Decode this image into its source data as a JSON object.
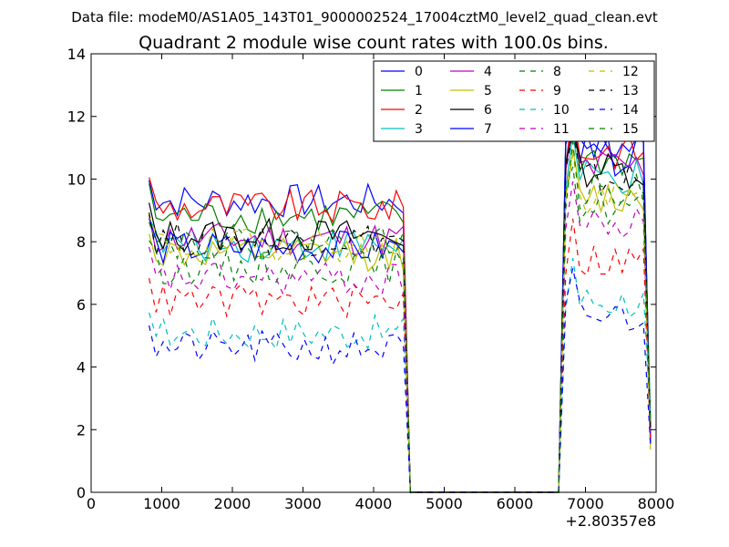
{
  "suptitle": "Data file: modeM0/AS1A05_143T01_9000002524_17004cztM0_level2_quad_clean.evt",
  "chart_data": {
    "type": "line",
    "title": "Quadrant 2 module wise count rates with 100.0s bins.",
    "xlabel": "",
    "ylabel": "",
    "x_offset_label": "+2.80357e8",
    "xlim": [
      0,
      8000
    ],
    "ylim": [
      0,
      14
    ],
    "xticks": [
      0,
      1000,
      2000,
      3000,
      4000,
      5000,
      6000,
      7000,
      8000
    ],
    "yticks": [
      0,
      2,
      4,
      6,
      8,
      10,
      12,
      14
    ],
    "grid": false,
    "legend_position": "top-right",
    "x_segments": [
      {
        "start": 820,
        "end": 4420,
        "step": 100
      },
      {
        "start": 4520,
        "end": 6620,
        "step": 100
      },
      {
        "start": 6720,
        "end": 7920,
        "step": 100
      }
    ],
    "series": [
      {
        "name": "0",
        "color": "#0000ff",
        "dash": "solid",
        "level1": 9.3,
        "level2": 11.0
      },
      {
        "name": "1",
        "color": "#008000",
        "dash": "solid",
        "level1": 8.8,
        "level2": 10.6
      },
      {
        "name": "2",
        "color": "#ff0000",
        "dash": "solid",
        "level1": 9.1,
        "level2": 10.9
      },
      {
        "name": "3",
        "color": "#00bfbf",
        "dash": "solid",
        "level1": 7.9,
        "level2": 10.0
      },
      {
        "name": "4",
        "color": "#bf00bf",
        "dash": "solid",
        "level1": 8.1,
        "level2": 10.4
      },
      {
        "name": "5",
        "color": "#bfbf00",
        "dash": "solid",
        "level1": 7.6,
        "level2": 9.4
      },
      {
        "name": "6",
        "color": "#000000",
        "dash": "solid",
        "level1": 8.2,
        "level2": 10.3
      },
      {
        "name": "7",
        "color": "#0000ff",
        "dash": "solid",
        "level1": 7.8,
        "level2": 10.7
      },
      {
        "name": "8",
        "color": "#008000",
        "dash": "dashed",
        "level1": 7.2,
        "level2": 9.1
      },
      {
        "name": "9",
        "color": "#ff0000",
        "dash": "dashed",
        "level1": 6.1,
        "level2": 7.4
      },
      {
        "name": "10",
        "color": "#00bfbf",
        "dash": "dashed",
        "level1": 5.1,
        "level2": 6.1
      },
      {
        "name": "11",
        "color": "#bf00bf",
        "dash": "dashed",
        "level1": 6.8,
        "level2": 8.5
      },
      {
        "name": "12",
        "color": "#bfbf00",
        "dash": "dashed",
        "level1": 7.9,
        "level2": 9.3
      },
      {
        "name": "13",
        "color": "#000000",
        "dash": "dashed",
        "level1": 8.1,
        "level2": 10.0
      },
      {
        "name": "14",
        "color": "#0000ff",
        "dash": "dashed",
        "level1": 4.6,
        "level2": 5.6
      },
      {
        "name": "15",
        "color": "#008000",
        "dash": "dashed",
        "level1": 8.0,
        "level2": 9.6
      }
    ]
  }
}
